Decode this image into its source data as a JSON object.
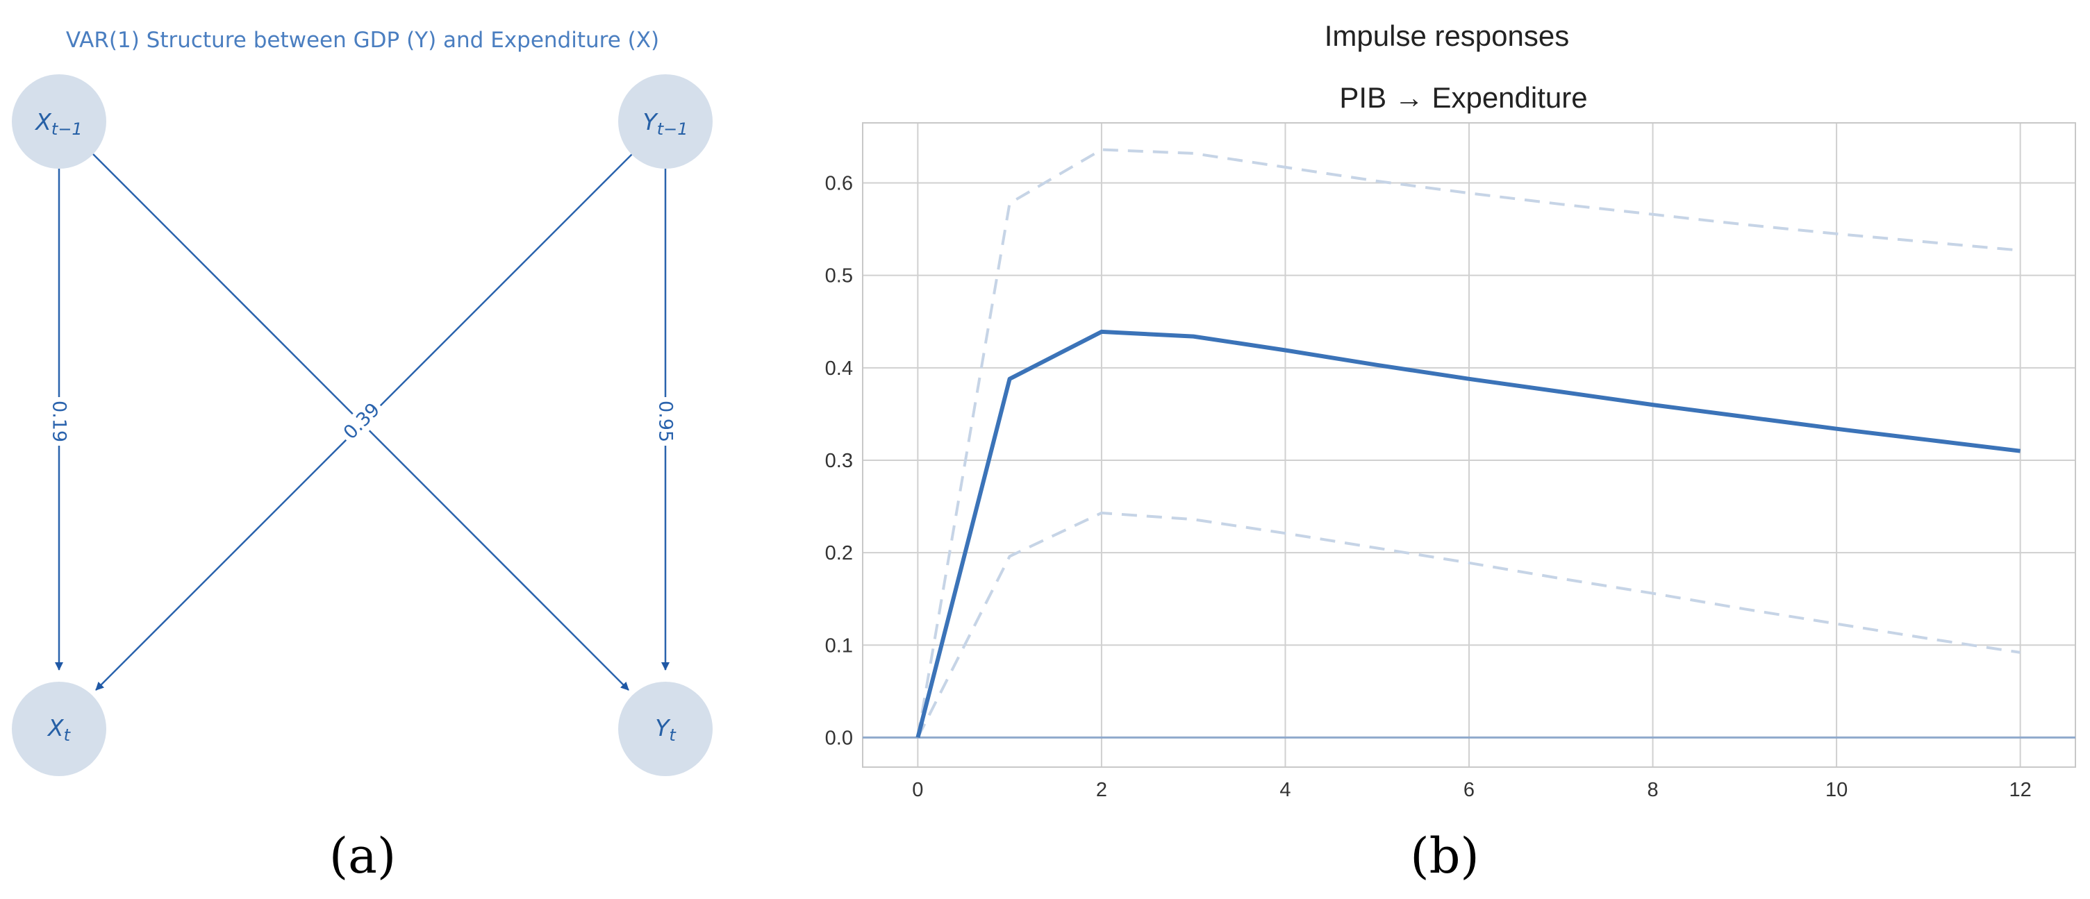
{
  "graph": {
    "title": "VAR(1) Structure between GDP (Y) and Expenditure (X)",
    "nodes": [
      {
        "id": "x_lag",
        "base": "X",
        "sub": "t−1"
      },
      {
        "id": "y_lag",
        "base": "Y",
        "sub": "t−1"
      },
      {
        "id": "x_now",
        "base": "X",
        "sub": "t"
      },
      {
        "id": "y_now",
        "base": "Y",
        "sub": "t"
      }
    ],
    "edges": [
      {
        "from": "x_lag",
        "to": "x_now",
        "weight": "0.19"
      },
      {
        "from": "x_lag",
        "to": "y_now",
        "weight": "0.39"
      },
      {
        "from": "y_lag",
        "to": "x_now",
        "weight": ""
      },
      {
        "from": "y_lag",
        "to": "y_now",
        "weight": "0.95"
      }
    ],
    "panel_label": "(a)"
  },
  "chart": {
    "suptitle": "Impulse responses",
    "panel_label": "(b)"
  },
  "chart_data": {
    "type": "line",
    "title": "PIB → Expenditure",
    "xlabel": "",
    "ylabel": "",
    "xlim": [
      -0.6,
      12.6
    ],
    "ylim": [
      -0.032,
      0.665
    ],
    "xticks": [
      0,
      2,
      4,
      6,
      8,
      10,
      12
    ],
    "yticks": [
      0.0,
      0.1,
      0.2,
      0.3,
      0.4,
      0.5,
      0.6
    ],
    "xticklabels": [
      "0",
      "2",
      "4",
      "6",
      "8",
      "10",
      "12"
    ],
    "yticklabels": [
      "0.0",
      "0.1",
      "0.2",
      "0.3",
      "0.4",
      "0.5",
      "0.6"
    ],
    "grid": true,
    "x": [
      0,
      1,
      2,
      3,
      4,
      5,
      6,
      7,
      8,
      9,
      10,
      11,
      12
    ],
    "series": [
      {
        "role": "response",
        "style": "solid",
        "color": "#3b73b8",
        "values": [
          0.0,
          0.388,
          0.439,
          0.434,
          0.419,
          0.403,
          0.388,
          0.374,
          0.36,
          0.347,
          0.334,
          0.322,
          0.31
        ]
      },
      {
        "role": "upper band",
        "style": "dashed",
        "color": "#c6d4e6",
        "values": [
          0.0,
          0.578,
          0.636,
          0.632,
          0.617,
          0.602,
          0.589,
          0.577,
          0.566,
          0.555,
          0.545,
          0.536,
          0.527
        ]
      },
      {
        "role": "lower band",
        "style": "dashed",
        "color": "#c6d4e6",
        "values": [
          0.0,
          0.196,
          0.243,
          0.236,
          0.221,
          0.205,
          0.189,
          0.172,
          0.156,
          0.139,
          0.123,
          0.107,
          0.092
        ]
      }
    ],
    "zero_line": 0.0
  }
}
